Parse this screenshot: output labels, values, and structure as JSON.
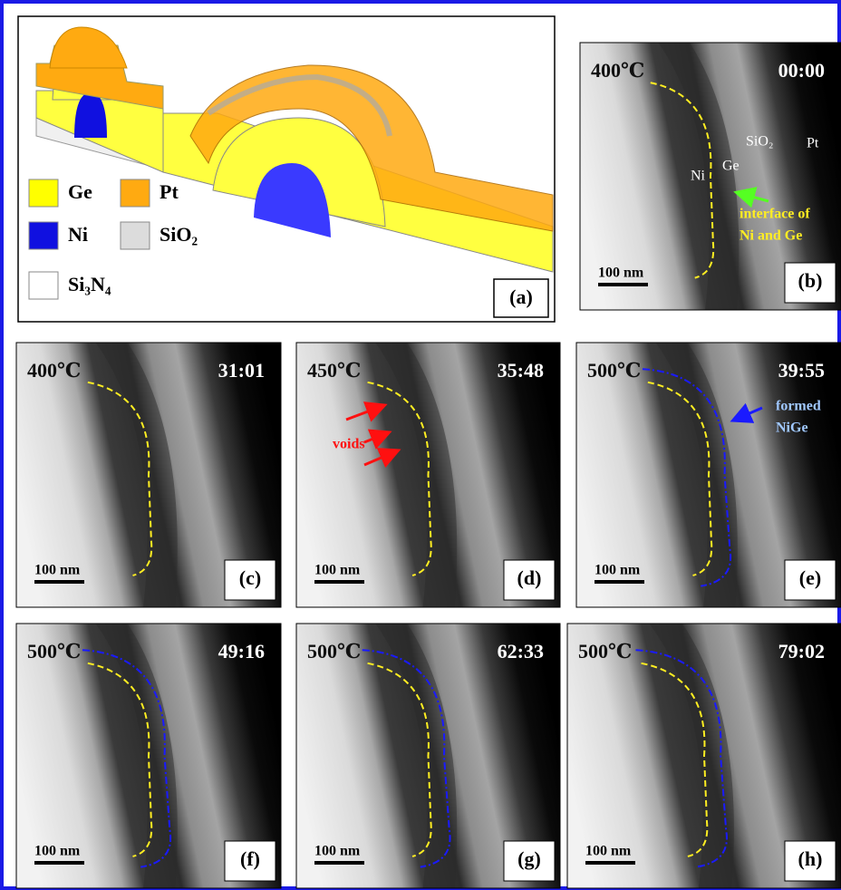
{
  "panel_a": {
    "label": "(a)",
    "legend": [
      {
        "label": "Ge",
        "color": "#ffff00"
      },
      {
        "label": "Pt",
        "color": "#ffaa11"
      },
      {
        "label": "Ni",
        "color": "#1010e0"
      },
      {
        "label": "SiO₂",
        "color": "#dcdcdc"
      },
      {
        "label": "Si₃N₄",
        "color": "#ffffff"
      }
    ]
  },
  "panels": [
    {
      "label": "(b)",
      "temperature": "400℃",
      "time": "00:00",
      "scale_bar": "100 nm",
      "annotations": [
        "SiO₂",
        "Pt",
        "Ge",
        "Ni",
        "interface of",
        "Ni and Ge"
      ]
    },
    {
      "label": "(c)",
      "temperature": "400℃",
      "time": "31:01",
      "scale_bar": "100 nm",
      "annotations": []
    },
    {
      "label": "(d)",
      "temperature": "450℃",
      "time": "35:48",
      "scale_bar": "100 nm",
      "annotations": [
        "voids"
      ]
    },
    {
      "label": "(e)",
      "temperature": "500℃",
      "time": "39:55",
      "scale_bar": "100 nm",
      "annotations": [
        "formed",
        "NiGe"
      ]
    },
    {
      "label": "(f)",
      "temperature": "500℃",
      "time": "49:16",
      "scale_bar": "100 nm",
      "annotations": []
    },
    {
      "label": "(g)",
      "temperature": "500℃",
      "time": "62:33",
      "scale_bar": "100 nm",
      "annotations": []
    },
    {
      "label": "(h)",
      "temperature": "500℃",
      "time": "79:02",
      "scale_bar": "100 nm",
      "annotations": []
    }
  ]
}
